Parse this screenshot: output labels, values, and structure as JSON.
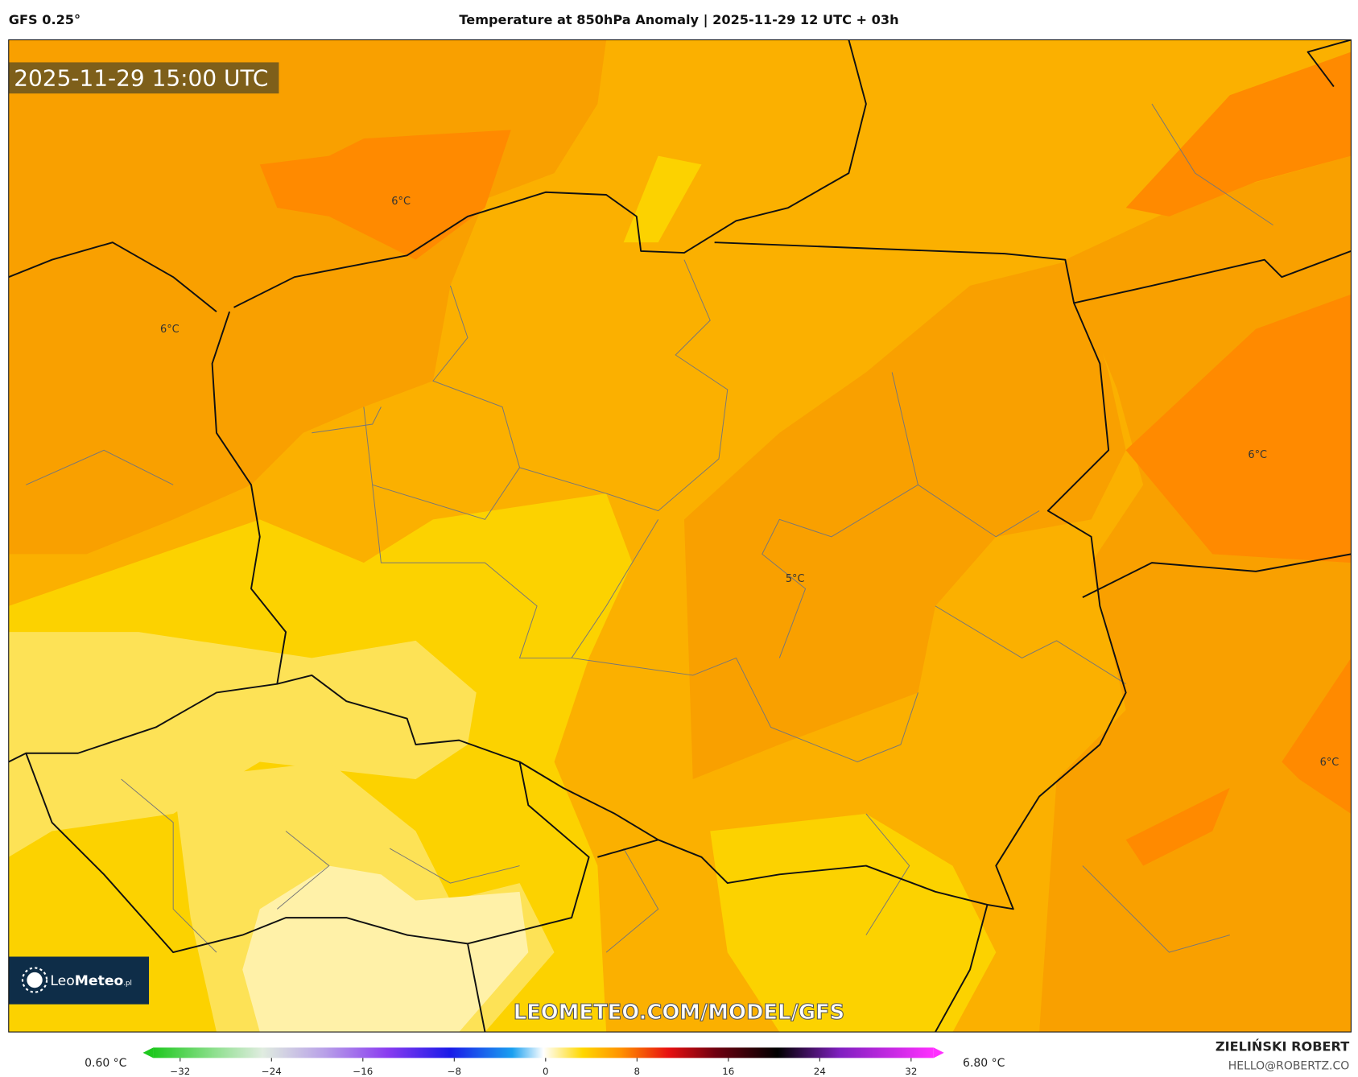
{
  "header": {
    "model": "GFS 0.25°",
    "title": "Temperature at 850hPa Anomaly | 2025-11-29 12 UTC + 03h"
  },
  "map": {
    "valid_time": "2025-11-29 15:00 UTC",
    "contour_labels": [
      "6°C",
      "6°C",
      "6°C",
      "5°C",
      "6°C"
    ],
    "watermark": "LEOMETEO.COM/MODEL/GFS",
    "logo": {
      "light": "Leo",
      "bold": "Meteo",
      "suffix": ".pl"
    }
  },
  "colorbar": {
    "min_label": "0.60 °C",
    "max_label": "6.80 °C",
    "ticks": [
      {
        "value": -32,
        "label": "−32"
      },
      {
        "value": -24,
        "label": "−24"
      },
      {
        "value": -16,
        "label": "−16"
      },
      {
        "value": -8,
        "label": "−8"
      },
      0,
      8,
      16,
      24,
      32
    ]
  },
  "author": {
    "name": "ZIELIŃSKI ROBERT",
    "email": "HELLO@ROBERTZ.CO"
  }
}
